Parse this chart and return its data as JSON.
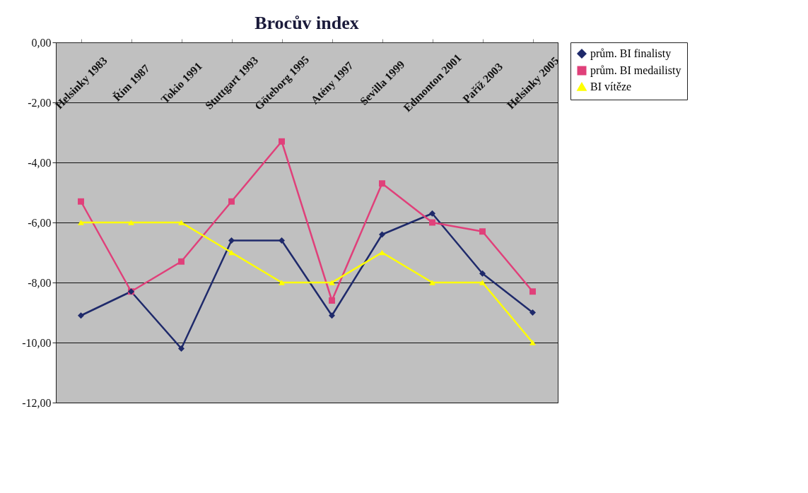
{
  "chart_data": {
    "type": "line",
    "title": "Brocův index",
    "categories": [
      "Helsinky 1983",
      "Řím 1987",
      "Tokio 1991",
      "Stuttgart 1993",
      "Göteborg 1995",
      "Atény 1997",
      "Sevilla 1999",
      "Edmonton 2001",
      "Paříž 2003",
      "Helsinky 2005"
    ],
    "series": [
      {
        "name": "prům. BI  finalisty",
        "color": "#1f2a6b",
        "marker": "diamond",
        "values": [
          -9.1,
          -8.3,
          -10.2,
          -6.6,
          -6.6,
          -9.1,
          -6.4,
          -5.7,
          -7.7,
          -9.0
        ]
      },
      {
        "name": "prům. BI medailisty",
        "color": "#e0407a",
        "marker": "square",
        "values": [
          -5.3,
          -8.3,
          -7.3,
          -5.3,
          -3.3,
          -8.6,
          -4.7,
          -6.0,
          -6.3,
          -8.3
        ]
      },
      {
        "name": "BI  vítěze",
        "color": "#ffff00",
        "marker": "triangle",
        "values": [
          -6,
          -6,
          -6,
          -7,
          -8,
          -8,
          -7,
          -8,
          -8,
          -10
        ]
      }
    ],
    "ylim": [
      -12,
      0
    ],
    "yticks": [
      {
        "value": 0,
        "label": "0,00"
      },
      {
        "value": -2,
        "label": "-2,00"
      },
      {
        "value": -4,
        "label": "-4,00"
      },
      {
        "value": -6,
        "label": "-6,00"
      },
      {
        "value": -8,
        "label": "-8,00"
      },
      {
        "value": -10,
        "label": "-10,00"
      },
      {
        "value": -12,
        "label": "-12,00"
      }
    ],
    "grid": "y",
    "legend": "right"
  }
}
